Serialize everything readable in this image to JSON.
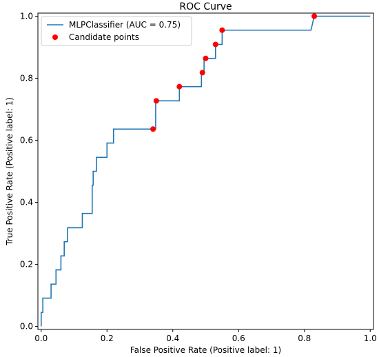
{
  "chart_data": {
    "type": "line",
    "title": "ROC Curve",
    "xlabel": "False Positive Rate (Positive label: 1)",
    "ylabel": "True Positive Rate (Positive label: 1)",
    "xlim": [
      -0.01,
      1.01
    ],
    "ylim": [
      -0.01,
      1.01
    ],
    "xticks": [
      0.0,
      0.2,
      0.4,
      0.6,
      0.8,
      1.0
    ],
    "yticks": [
      0.0,
      0.2,
      0.4,
      0.6,
      0.8,
      1.0
    ],
    "xtick_labels": [
      "0.0",
      "0.2",
      "0.4",
      "0.6",
      "0.8",
      "1.0"
    ],
    "ytick_labels": [
      "0.0",
      "0.2",
      "0.4",
      "0.6",
      "0.8",
      "1.0"
    ],
    "grid": false,
    "legend_position": "top-left",
    "series": [
      {
        "name": "MLPClassifier (AUC = 0.75)",
        "kind": "line",
        "color": "#1f77b4",
        "x": [
          0.0,
          0.0,
          0.005,
          0.005,
          0.03,
          0.03,
          0.045,
          0.045,
          0.06,
          0.06,
          0.07,
          0.07,
          0.08,
          0.08,
          0.125,
          0.125,
          0.155,
          0.155,
          0.158,
          0.158,
          0.168,
          0.168,
          0.2,
          0.2,
          0.21,
          0.21,
          0.22,
          0.22,
          0.34,
          0.348,
          0.348,
          0.42,
          0.42,
          0.487,
          0.487,
          0.495,
          0.495,
          0.51,
          0.51,
          0.53,
          0.53,
          0.545,
          0.545,
          0.55,
          0.55,
          0.82,
          0.83,
          0.83,
          1.0
        ],
        "y": [
          0.0,
          0.045,
          0.045,
          0.091,
          0.091,
          0.136,
          0.136,
          0.182,
          0.182,
          0.227,
          0.227,
          0.273,
          0.273,
          0.318,
          0.318,
          0.364,
          0.364,
          0.455,
          0.455,
          0.5,
          0.5,
          0.545,
          0.545,
          0.591,
          0.591,
          0.591,
          0.591,
          0.636,
          0.636,
          0.636,
          0.727,
          0.727,
          0.773,
          0.773,
          0.818,
          0.818,
          0.864,
          0.864,
          0.864,
          0.864,
          0.909,
          0.909,
          0.909,
          0.909,
          0.955,
          0.955,
          1.0,
          1.0,
          1.0
        ]
      },
      {
        "name": "Candidate points",
        "kind": "scatter",
        "color": "#ff0000",
        "x": [
          0.34,
          0.35,
          0.42,
          0.49,
          0.5,
          0.53,
          0.55,
          0.83
        ],
        "y": [
          0.636,
          0.727,
          0.773,
          0.818,
          0.864,
          0.909,
          0.955,
          1.0
        ]
      }
    ]
  }
}
